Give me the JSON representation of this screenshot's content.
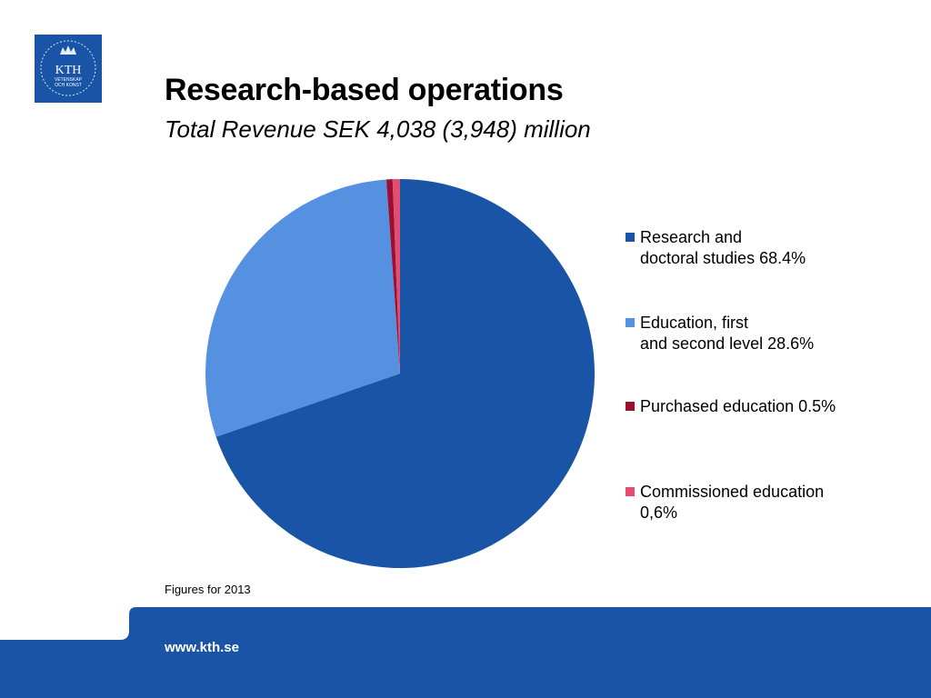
{
  "logo": {
    "text": "KTH",
    "line2": "VETENSKAP",
    "line3": "OCH KONST",
    "color": "#1954a6"
  },
  "title": "Research-based operations",
  "subtitle": "Total Revenue SEK 4,038 (3,948) million",
  "note": "Figures for 2013",
  "footer": {
    "url": "www.kth.se",
    "color": "#1954a6"
  },
  "chart_data": {
    "type": "pie",
    "legend_position": "right",
    "slices": [
      {
        "label_line1": "Research and",
        "label_line2": "doctoral studies 68.4%",
        "value": 68.4,
        "color": "#1954a6"
      },
      {
        "label_line1": "Education, first",
        "label_line2": "and second level 28.6%",
        "value": 28.6,
        "color": "#5591e0"
      },
      {
        "label_line1": "Purchased education 0.5%",
        "label_line2": "",
        "value": 0.5,
        "color": "#9b1030"
      },
      {
        "label_line1": "Commissioned education",
        "label_line2": "0,6%",
        "value": 0.6,
        "color": "#e34d6f"
      }
    ]
  }
}
